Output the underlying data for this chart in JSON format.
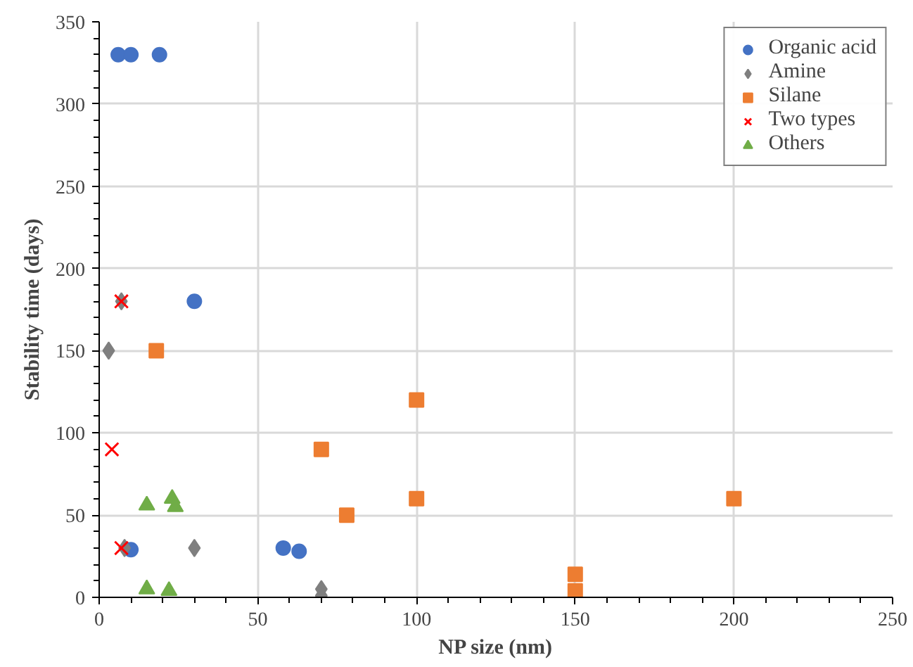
{
  "chart_data": {
    "type": "scatter",
    "xlabel": "NP size (nm)",
    "ylabel": "Stability time (days)",
    "xlim": [
      0,
      250
    ],
    "ylim": [
      0,
      350
    ],
    "xticks": [
      0,
      50,
      100,
      150,
      200,
      250
    ],
    "yticks": [
      0,
      50,
      100,
      150,
      200,
      250,
      300,
      350
    ],
    "grid": true,
    "legend": "top right",
    "series": [
      {
        "name": "Organic acid",
        "color": "#4472c4",
        "marker": "circle",
        "x": [
          6,
          10,
          19,
          30,
          10,
          58,
          63
        ],
        "values": [
          330,
          330,
          330,
          180,
          29,
          30,
          28
        ]
      },
      {
        "name": "Amine",
        "color": "#7f7f7f",
        "marker": "diamond",
        "x": [
          3,
          7,
          8,
          30,
          70,
          70
        ],
        "values": [
          150,
          180,
          30,
          30,
          5,
          1
        ]
      },
      {
        "name": "Silane",
        "color": "#ed7d31",
        "marker": "square",
        "x": [
          18,
          70,
          78,
          100,
          100,
          200,
          150,
          150
        ],
        "values": [
          150,
          90,
          50,
          120,
          60,
          60,
          14,
          4
        ]
      },
      {
        "name": "Two types",
        "color": "#ff0000",
        "marker": "cross",
        "x": [
          7,
          4,
          7
        ],
        "values": [
          180,
          90,
          30
        ]
      },
      {
        "name": "Others",
        "color": "#70ad47",
        "marker": "triangle",
        "x": [
          15,
          23,
          24,
          15,
          22
        ],
        "values": [
          56,
          60,
          55,
          5,
          4
        ]
      }
    ]
  }
}
